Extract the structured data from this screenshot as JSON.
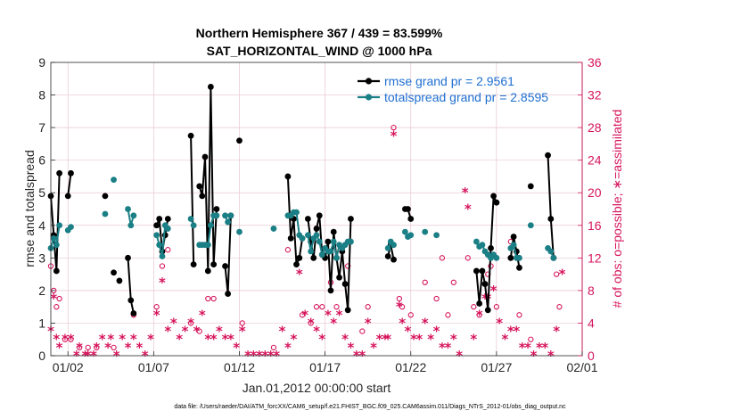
{
  "chart_data": {
    "type": "line",
    "title_line1": "Northern Hemisphere 367 / 439 = 83.599%",
    "title_line2": "SAT_HORIZONTAL_WIND @ 1000 hPa",
    "xlabel": "Jan.01,2012 00:00:00 start",
    "ylabel_left": "rmse and totalspread",
    "ylabel_right": "# of obs: o=possible; ∗=assimilated",
    "xlim": [
      0.5,
      31.5
    ],
    "ylim_left": [
      0,
      9
    ],
    "ylim_right": [
      0,
      36
    ],
    "x_ticks": [
      {
        "x": 1.5,
        "label": "01/02"
      },
      {
        "x": 6.5,
        "label": "01/07"
      },
      {
        "x": 11.5,
        "label": "01/12"
      },
      {
        "x": 16.5,
        "label": "01/17"
      },
      {
        "x": 21.5,
        "label": "01/22"
      },
      {
        "x": 26.5,
        "label": "01/27"
      },
      {
        "x": 31.5,
        "label": "02/01"
      }
    ],
    "y_ticks_left": [
      "0",
      "1",
      "2",
      "3",
      "4",
      "5",
      "6",
      "7",
      "8",
      "9"
    ],
    "y_ticks_right": [
      "0",
      "4",
      "8",
      "12",
      "16",
      "20",
      "24",
      "28",
      "32",
      "36"
    ],
    "grid": true,
    "legend": [
      {
        "label": "rmse grand pr = 2.9561",
        "color": "#000000"
      },
      {
        "label": "totalspread grand pr = 2.8595",
        "color": "#1b7f86"
      }
    ],
    "colors": {
      "rmse": "#000000",
      "spread": "#1b7f86",
      "obs": "#d6155c",
      "right_axis": "#d6155c",
      "grid": "#e8c6d0"
    },
    "series": [
      {
        "name": "rmse",
        "points": [
          [
            0.5,
            4.9
          ],
          [
            0.67,
            3.7
          ],
          [
            0.83,
            2.6
          ],
          [
            1.0,
            5.6
          ],
          [
            1.5,
            4.9
          ],
          [
            1.67,
            5.6
          ],
          [
            3.67,
            4.9
          ],
          [
            4.17,
            2.55
          ],
          [
            4.5,
            2.3
          ],
          [
            5.0,
            3.0
          ],
          [
            5.17,
            1.7
          ],
          [
            5.33,
            1.3
          ],
          [
            6.67,
            4.0
          ],
          [
            6.83,
            4.2
          ],
          [
            7.0,
            3.2
          ],
          [
            7.17,
            3.7
          ],
          [
            7.33,
            4.2
          ],
          [
            8.67,
            6.75
          ],
          [
            8.83,
            2.8
          ],
          [
            9.17,
            5.2
          ],
          [
            9.33,
            4.9
          ],
          [
            9.5,
            6.1
          ],
          [
            9.67,
            2.6
          ],
          [
            9.83,
            8.25
          ],
          [
            10.0,
            2.8
          ],
          [
            10.17,
            4.5
          ],
          [
            10.67,
            2.75
          ],
          [
            10.83,
            1.9
          ],
          [
            11.0,
            4.3
          ],
          [
            11.5,
            6.6
          ],
          [
            14.33,
            5.5
          ],
          [
            14.5,
            3.6
          ],
          [
            14.67,
            4.2
          ],
          [
            14.83,
            2.8
          ],
          [
            15.0,
            3.0
          ],
          [
            15.17,
            3.6
          ],
          [
            15.5,
            4.2
          ],
          [
            15.67,
            3.5
          ],
          [
            15.83,
            3.0
          ],
          [
            16.0,
            3.9
          ],
          [
            16.17,
            4.3
          ],
          [
            16.33,
            3.1
          ],
          [
            16.5,
            3.0
          ],
          [
            16.67,
            3.5
          ],
          [
            16.83,
            2.0
          ],
          [
            17.0,
            3.8
          ],
          [
            17.17,
            3.0
          ],
          [
            17.33,
            2.4
          ],
          [
            17.5,
            3.2
          ],
          [
            17.67,
            2.2
          ],
          [
            17.83,
            1.4
          ],
          [
            18.0,
            4.2
          ],
          [
            20.17,
            3.05
          ],
          [
            20.33,
            3.4
          ],
          [
            20.5,
            2.95
          ],
          [
            21.17,
            4.5
          ],
          [
            21.33,
            4.5
          ],
          [
            21.5,
            4.2
          ],
          [
            25.33,
            2.6
          ],
          [
            25.5,
            1.6
          ],
          [
            25.67,
            2.6
          ],
          [
            25.83,
            2.2
          ],
          [
            26.0,
            1.4
          ],
          [
            26.17,
            3.3
          ],
          [
            26.33,
            4.9
          ],
          [
            26.5,
            4.7
          ],
          [
            27.33,
            3.0
          ],
          [
            27.5,
            3.65
          ],
          [
            27.67,
            3.2
          ],
          [
            27.83,
            2.7
          ],
          [
            28.5,
            5.2
          ],
          [
            29.5,
            6.15
          ],
          [
            29.67,
            4.2
          ],
          [
            29.83,
            3.0
          ]
        ]
      },
      {
        "name": "totalspread",
        "points": [
          [
            0.5,
            3.3
          ],
          [
            0.67,
            3.6
          ],
          [
            0.83,
            3.4
          ],
          [
            1.0,
            4.0
          ],
          [
            1.5,
            3.85
          ],
          [
            1.67,
            3.95
          ],
          [
            3.67,
            4.35
          ],
          [
            4.17,
            5.4
          ],
          [
            5.0,
            4.5
          ],
          [
            5.17,
            4.0
          ],
          [
            5.33,
            4.3
          ],
          [
            6.67,
            3.7
          ],
          [
            6.83,
            3.4
          ],
          [
            7.0,
            3.05
          ],
          [
            7.17,
            4.0
          ],
          [
            7.33,
            3.9
          ],
          [
            8.67,
            4.2
          ],
          [
            8.83,
            4.0
          ],
          [
            9.17,
            3.4
          ],
          [
            9.33,
            3.4
          ],
          [
            9.5,
            3.4
          ],
          [
            9.67,
            3.4
          ],
          [
            9.83,
            4.0
          ],
          [
            10.0,
            4.3
          ],
          [
            10.17,
            4.3
          ],
          [
            10.67,
            4.3
          ],
          [
            10.83,
            4.1
          ],
          [
            11.0,
            4.3
          ],
          [
            11.5,
            3.8
          ],
          [
            13.5,
            3.9
          ],
          [
            14.33,
            4.3
          ],
          [
            14.5,
            4.3
          ],
          [
            14.67,
            4.4
          ],
          [
            14.83,
            4.4
          ],
          [
            15.0,
            3.7
          ],
          [
            15.17,
            3.6
          ],
          [
            15.5,
            3.7
          ],
          [
            15.67,
            3.2
          ],
          [
            15.83,
            3.6
          ],
          [
            16.0,
            3.7
          ],
          [
            16.17,
            3.5
          ],
          [
            16.33,
            3.1
          ],
          [
            16.5,
            3.3
          ],
          [
            16.67,
            3.2
          ],
          [
            16.83,
            3.2
          ],
          [
            17.0,
            3.5
          ],
          [
            17.17,
            3.0
          ],
          [
            17.33,
            3.4
          ],
          [
            17.5,
            3.3
          ],
          [
            17.67,
            3.4
          ],
          [
            17.83,
            3.5
          ],
          [
            18.0,
            3.5
          ],
          [
            20.17,
            3.3
          ],
          [
            20.33,
            3.5
          ],
          [
            20.5,
            3.4
          ],
          [
            21.17,
            3.8
          ],
          [
            21.33,
            3.65
          ],
          [
            21.5,
            3.7
          ],
          [
            22.33,
            3.8
          ],
          [
            23.0,
            3.7
          ],
          [
            25.33,
            3.5
          ],
          [
            25.5,
            3.35
          ],
          [
            25.67,
            3.4
          ],
          [
            25.83,
            3.2
          ],
          [
            26.0,
            3.1
          ],
          [
            26.17,
            3.0
          ],
          [
            26.33,
            3.1
          ],
          [
            26.5,
            3.0
          ],
          [
            27.33,
            3.3
          ],
          [
            27.5,
            3.4
          ],
          [
            27.67,
            3.0
          ],
          [
            27.83,
            3.0
          ],
          [
            28.5,
            4.0
          ],
          [
            29.5,
            3.3
          ],
          [
            29.67,
            3.2
          ],
          [
            29.83,
            3.0
          ]
        ]
      }
    ],
    "obs_possible": [
      [
        0.5,
        11
      ],
      [
        0.67,
        8
      ],
      [
        0.83,
        6
      ],
      [
        1.0,
        7
      ],
      [
        1.33,
        2
      ],
      [
        1.67,
        2
      ],
      [
        2.17,
        1
      ],
      [
        2.67,
        1
      ],
      [
        3.17,
        1
      ],
      [
        4.17,
        1
      ],
      [
        5.33,
        5
      ],
      [
        6.67,
        6
      ],
      [
        7.0,
        11
      ],
      [
        7.33,
        13
      ],
      [
        8.67,
        4
      ],
      [
        9.17,
        3
      ],
      [
        9.67,
        7
      ],
      [
        10.0,
        7
      ],
      [
        11.67,
        4
      ],
      [
        13.5,
        1
      ],
      [
        14.33,
        13
      ],
      [
        15.17,
        5
      ],
      [
        15.67,
        4
      ],
      [
        16.0,
        6
      ],
      [
        16.33,
        6
      ],
      [
        16.83,
        9
      ],
      [
        17.17,
        6
      ],
      [
        17.83,
        11
      ],
      [
        18.67,
        3
      ],
      [
        19.0,
        6
      ],
      [
        20.5,
        28
      ],
      [
        20.83,
        7
      ],
      [
        21.0,
        6
      ],
      [
        21.5,
        5
      ],
      [
        22.33,
        9
      ],
      [
        23.0,
        7
      ],
      [
        23.33,
        12
      ],
      [
        23.67,
        5
      ],
      [
        24.0,
        9
      ],
      [
        24.83,
        12
      ],
      [
        25.17,
        6
      ],
      [
        25.5,
        5
      ],
      [
        26.0,
        10
      ],
      [
        26.17,
        11
      ],
      [
        26.5,
        6
      ],
      [
        27.33,
        14
      ],
      [
        27.83,
        5
      ],
      [
        28.5,
        2
      ],
      [
        30.0,
        10
      ],
      [
        30.17,
        6
      ]
    ],
    "obs_assimilated": [
      [
        0.5,
        3
      ],
      [
        0.67,
        7
      ],
      [
        0.83,
        2
      ],
      [
        1.0,
        1
      ],
      [
        1.33,
        2
      ],
      [
        1.67,
        2
      ],
      [
        2.0,
        0
      ],
      [
        2.17,
        1
      ],
      [
        2.5,
        0
      ],
      [
        2.67,
        0
      ],
      [
        3.0,
        0
      ],
      [
        3.17,
        1
      ],
      [
        3.5,
        2
      ],
      [
        3.83,
        1
      ],
      [
        4.0,
        2
      ],
      [
        4.33,
        0
      ],
      [
        4.67,
        2
      ],
      [
        5.0,
        1
      ],
      [
        5.33,
        2
      ],
      [
        5.67,
        1
      ],
      [
        6.0,
        0
      ],
      [
        6.33,
        2
      ],
      [
        6.67,
        5
      ],
      [
        7.0,
        9
      ],
      [
        7.33,
        3
      ],
      [
        7.67,
        4
      ],
      [
        8.0,
        2
      ],
      [
        8.33,
        3
      ],
      [
        8.67,
        4
      ],
      [
        9.0,
        3
      ],
      [
        9.33,
        5
      ],
      [
        9.67,
        2
      ],
      [
        10.0,
        2
      ],
      [
        10.33,
        3
      ],
      [
        10.67,
        2
      ],
      [
        11.0,
        2
      ],
      [
        11.33,
        1
      ],
      [
        11.67,
        3
      ],
      [
        12.0,
        0
      ],
      [
        12.33,
        0
      ],
      [
        12.67,
        0
      ],
      [
        13.0,
        0
      ],
      [
        13.33,
        0
      ],
      [
        13.67,
        0
      ],
      [
        14.0,
        3
      ],
      [
        14.33,
        1
      ],
      [
        14.67,
        2
      ],
      [
        15.0,
        10
      ],
      [
        15.33,
        5
      ],
      [
        15.67,
        4
      ],
      [
        16.0,
        3
      ],
      [
        16.33,
        2
      ],
      [
        16.67,
        5
      ],
      [
        17.0,
        4
      ],
      [
        17.33,
        5
      ],
      [
        17.67,
        2
      ],
      [
        18.0,
        1
      ],
      [
        18.33,
        0
      ],
      [
        18.67,
        0
      ],
      [
        19.0,
        4
      ],
      [
        19.33,
        1
      ],
      [
        19.67,
        2
      ],
      [
        20.0,
        2
      ],
      [
        20.17,
        2
      ],
      [
        20.5,
        27
      ],
      [
        20.83,
        6
      ],
      [
        21.0,
        4
      ],
      [
        21.33,
        3
      ],
      [
        21.67,
        2
      ],
      [
        22.0,
        2
      ],
      [
        22.33,
        4
      ],
      [
        22.67,
        2
      ],
      [
        23.0,
        3
      ],
      [
        23.33,
        1
      ],
      [
        23.67,
        1
      ],
      [
        24.0,
        2
      ],
      [
        24.33,
        0
      ],
      [
        24.67,
        20
      ],
      [
        24.83,
        18
      ],
      [
        25.17,
        2
      ],
      [
        25.5,
        5
      ],
      [
        25.83,
        7
      ],
      [
        26.0,
        7
      ],
      [
        26.33,
        8
      ],
      [
        26.67,
        4
      ],
      [
        27.0,
        2
      ],
      [
        27.33,
        3
      ],
      [
        27.67,
        3
      ],
      [
        28.0,
        1
      ],
      [
        28.33,
        1
      ],
      [
        28.67,
        0
      ],
      [
        29.0,
        1
      ],
      [
        29.33,
        1
      ],
      [
        29.67,
        0
      ],
      [
        30.0,
        3
      ],
      [
        30.33,
        10
      ]
    ],
    "footnote": "data file: /Users/raeder/DAI/ATM_forcXX/CAM6_setup/f.e21.FHIST_BGC.f09_025.CAM6assim.011/Diags_NTrS_2012-01/obs_diag_output.nc"
  }
}
